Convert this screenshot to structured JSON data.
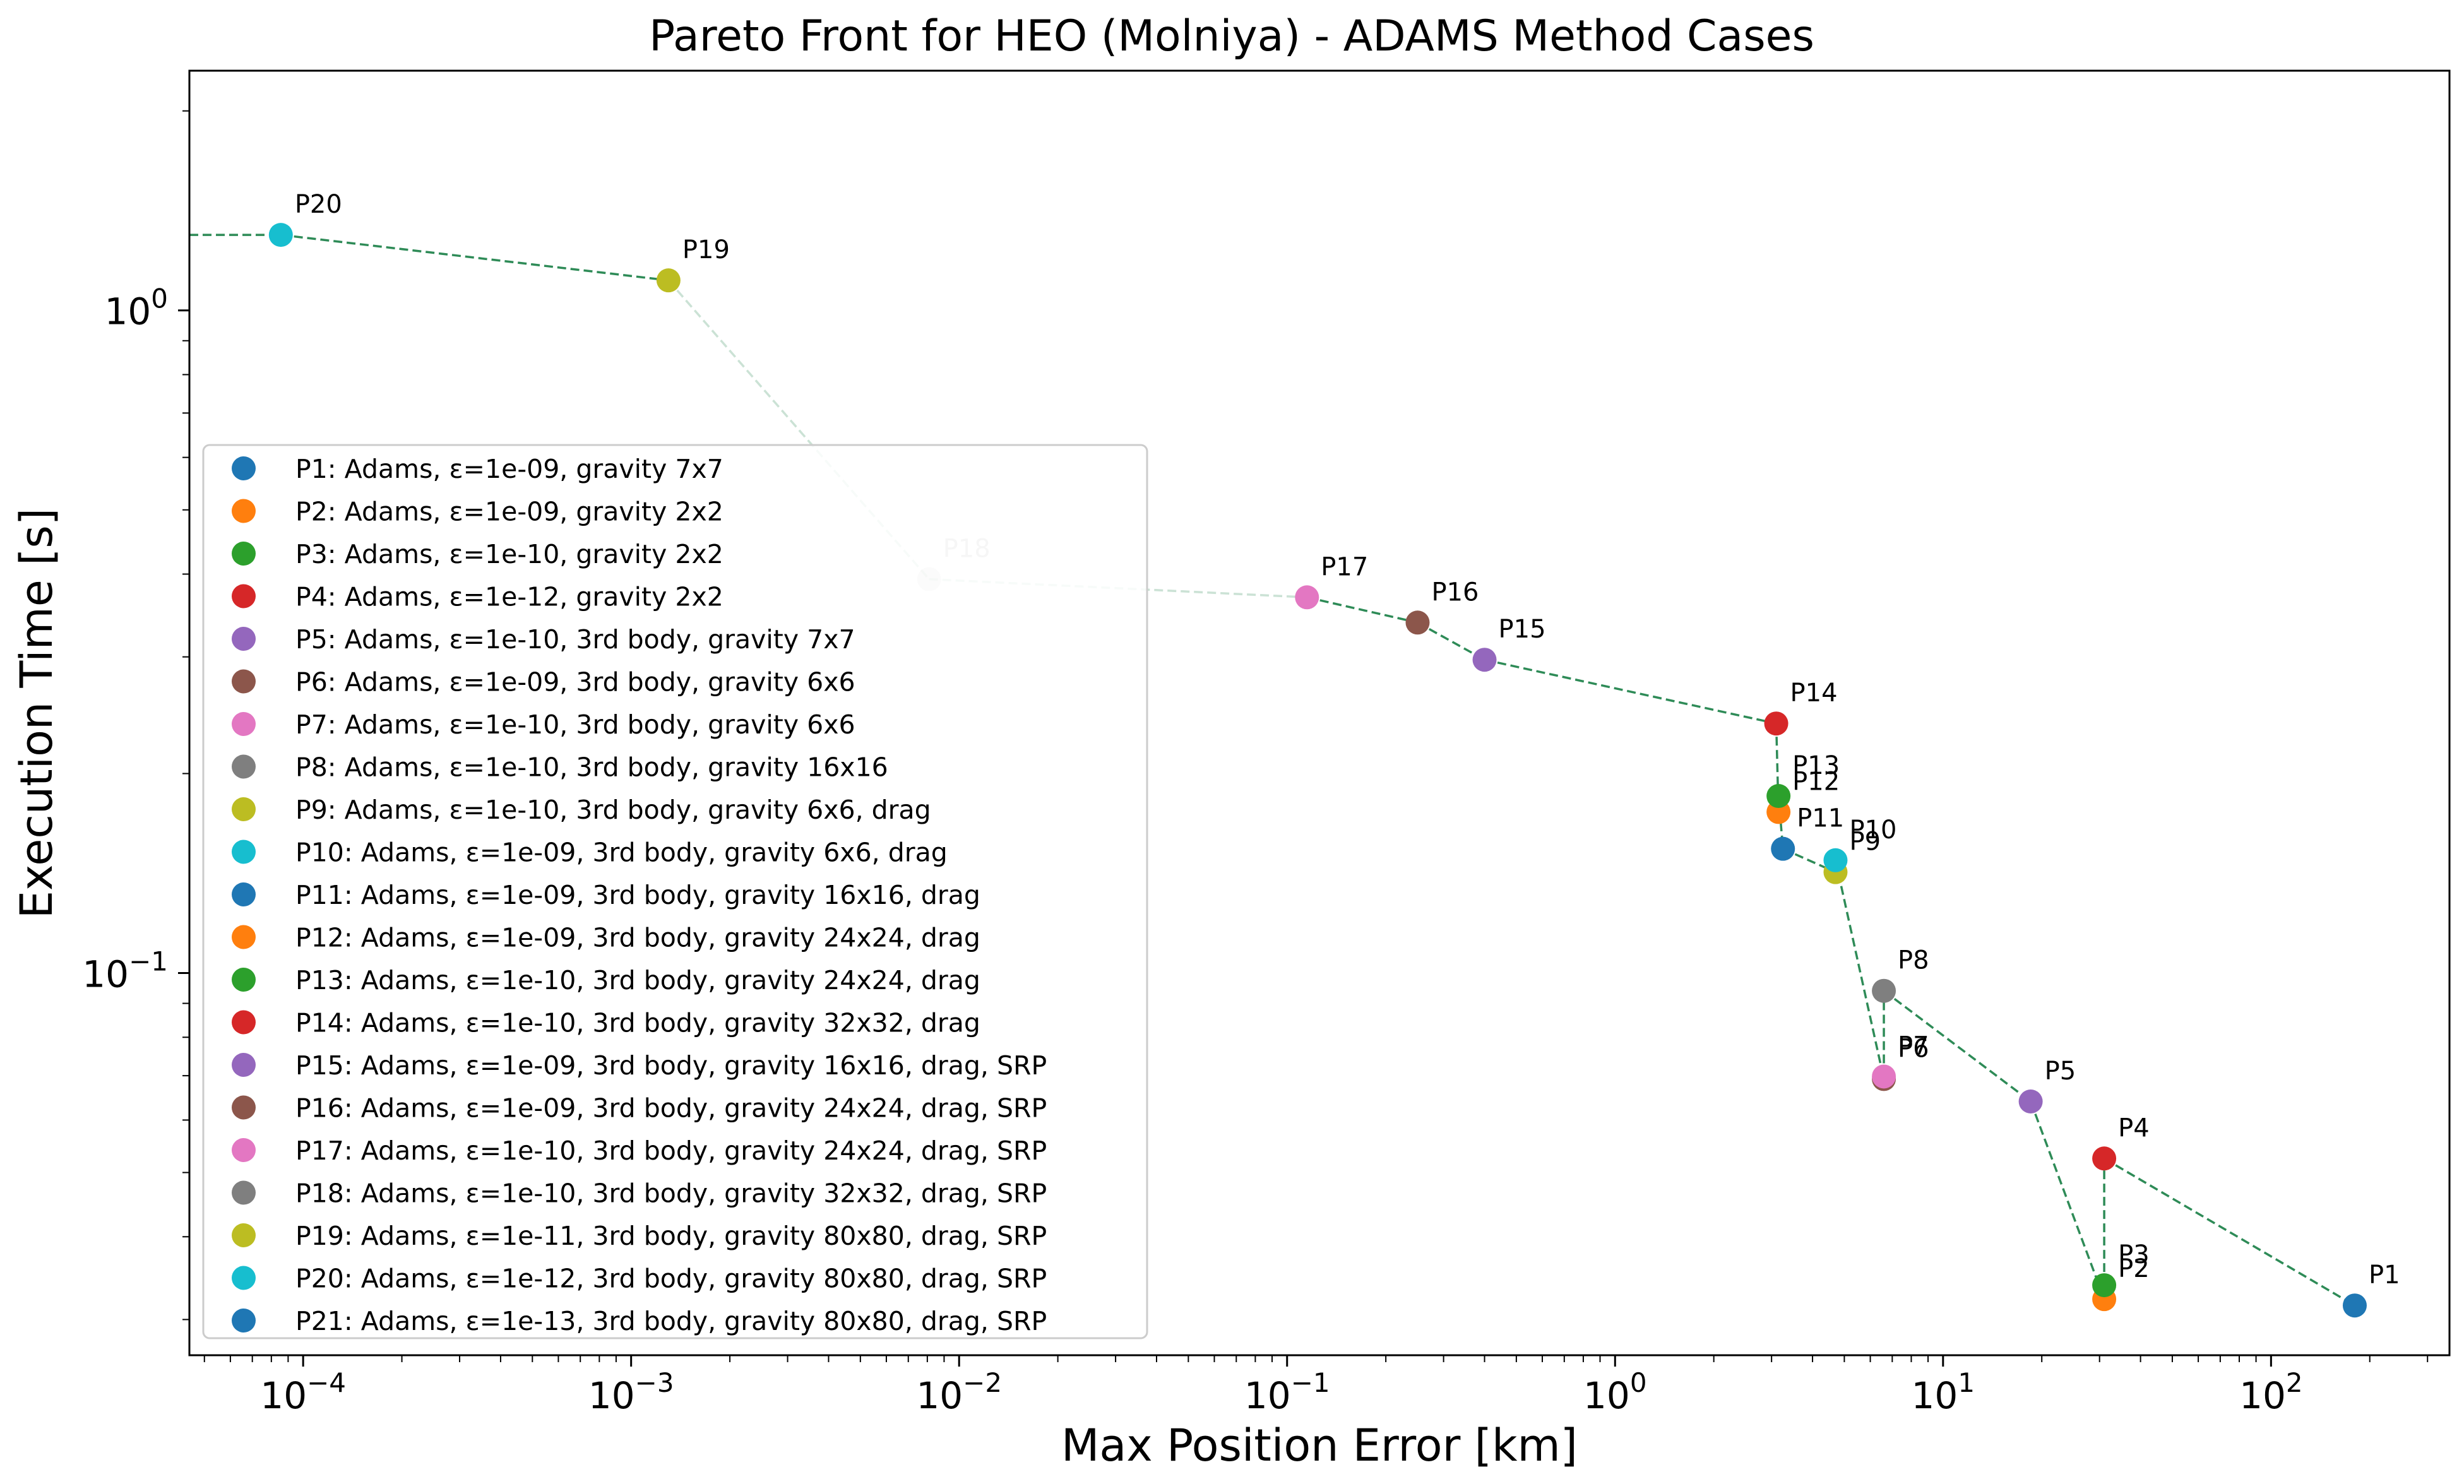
{
  "chart_data": {
    "type": "scatter",
    "title": "Pareto Front for HEO (Molniya) - ADAMS Method Cases",
    "xlabel": "Max Position Error [km]",
    "ylabel": "Execution Time [s]",
    "xscale": "log",
    "yscale": "log",
    "xlim": [
      4.5e-05,
      350
    ],
    "ylim": [
      0.0265,
      2.3
    ],
    "legend_placement": "center-left",
    "x_ticks": [
      {
        "value": 0.0001,
        "base": "10",
        "exp": "−4"
      },
      {
        "value": 0.001,
        "base": "10",
        "exp": "−3"
      },
      {
        "value": 0.01,
        "base": "10",
        "exp": "−2"
      },
      {
        "value": 0.1,
        "base": "10",
        "exp": "−1"
      },
      {
        "value": 1,
        "base": "10",
        "exp": "0"
      },
      {
        "value": 10,
        "base": "10",
        "exp": "1"
      },
      {
        "value": 100,
        "base": "10",
        "exp": "2"
      }
    ],
    "y_ticks": [
      {
        "value": 0.1,
        "base": "10",
        "exp": "−1"
      },
      {
        "value": 1,
        "base": "10",
        "exp": "0"
      }
    ],
    "pareto_line": {
      "color": "#2e8b57",
      "style": "dashed",
      "extends_left": true
    },
    "points": [
      {
        "id": "P1",
        "x": 180,
        "y": 0.0315,
        "color": "#1f77b4",
        "legend": "P1: Adams, ε=1e-09, gravity 7x7"
      },
      {
        "id": "P2",
        "x": 31,
        "y": 0.0322,
        "color": "#ff7f0e",
        "legend": "P2: Adams, ε=1e-09, gravity 2x2"
      },
      {
        "id": "P3",
        "x": 31,
        "y": 0.0338,
        "color": "#2ca02c",
        "legend": "P3: Adams, ε=1e-10, gravity 2x2"
      },
      {
        "id": "P4",
        "x": 31,
        "y": 0.0525,
        "color": "#d62728",
        "legend": "P4: Adams, ε=1e-12, gravity 2x2"
      },
      {
        "id": "P5",
        "x": 18.5,
        "y": 0.064,
        "color": "#9467bd",
        "legend": "P5: Adams, ε=1e-10, 3rd body, gravity 7x7"
      },
      {
        "id": "P6",
        "x": 6.6,
        "y": 0.0692,
        "color": "#8c564b",
        "legend": "P6: Adams, ε=1e-09, 3rd body, gravity 6x6"
      },
      {
        "id": "P7",
        "x": 6.6,
        "y": 0.0698,
        "color": "#e377c2",
        "legend": "P7: Adams, ε=1e-10, 3rd body, gravity 6x6"
      },
      {
        "id": "P8",
        "x": 6.6,
        "y": 0.094,
        "color": "#7f7f7f",
        "legend": "P8: Adams, ε=1e-10, 3rd body, gravity 16x16"
      },
      {
        "id": "P9",
        "x": 4.7,
        "y": 0.142,
        "color": "#bcbd22",
        "legend": "P9: Adams, ε=1e-10, 3rd body, gravity 6x6, drag"
      },
      {
        "id": "P10",
        "x": 4.7,
        "y": 0.148,
        "color": "#17becf",
        "legend": "P10: Adams, ε=1e-09, 3rd body, gravity 6x6, drag"
      },
      {
        "id": "P11",
        "x": 3.25,
        "y": 0.154,
        "color": "#1f77b4",
        "legend": "P11: Adams, ε=1e-09, 3rd body, gravity 16x16, drag"
      },
      {
        "id": "P12",
        "x": 3.15,
        "y": 0.175,
        "color": "#ff7f0e",
        "legend": "P12: Adams, ε=1e-09, 3rd body, gravity 24x24, drag"
      },
      {
        "id": "P13",
        "x": 3.15,
        "y": 0.185,
        "color": "#2ca02c",
        "legend": "P13: Adams, ε=1e-10, 3rd body, gravity 24x24, drag"
      },
      {
        "id": "P14",
        "x": 3.1,
        "y": 0.238,
        "color": "#d62728",
        "legend": "P14: Adams, ε=1e-10, 3rd body, gravity 32x32, drag"
      },
      {
        "id": "P15",
        "x": 0.4,
        "y": 0.297,
        "color": "#9467bd",
        "legend": "P15: Adams, ε=1e-09, 3rd body, gravity 16x16, drag, SRP"
      },
      {
        "id": "P16",
        "x": 0.25,
        "y": 0.338,
        "color": "#8c564b",
        "legend": "P16: Adams, ε=1e-09, 3rd body, gravity 24x24, drag, SRP"
      },
      {
        "id": "P17",
        "x": 0.115,
        "y": 0.369,
        "color": "#e377c2",
        "legend": "P17: Adams, ε=1e-10, 3rd body, gravity 24x24, drag, SRP"
      },
      {
        "id": "P18",
        "x": 0.0081,
        "y": 0.393,
        "color": "#7f7f7f",
        "legend": "P18: Adams, ε=1e-10, 3rd body, gravity 32x32, drag, SRP",
        "faded": true
      },
      {
        "id": "P19",
        "x": 0.0013,
        "y": 1.11,
        "color": "#bcbd22",
        "legend": "P19: Adams, ε=1e-11, 3rd body, gravity 80x80, drag, SRP"
      },
      {
        "id": "P20",
        "x": 8.55e-05,
        "y": 1.3,
        "color": "#17becf",
        "legend": "P20: Adams, ε=1e-12, 3rd body, gravity 80x80, drag, SRP"
      },
      {
        "id": "P21",
        "x": null,
        "y": null,
        "color": "#1f77b4",
        "legend": "P21: Adams, ε=1e-13, 3rd body, gravity 80x80, drag, SRP"
      }
    ]
  }
}
